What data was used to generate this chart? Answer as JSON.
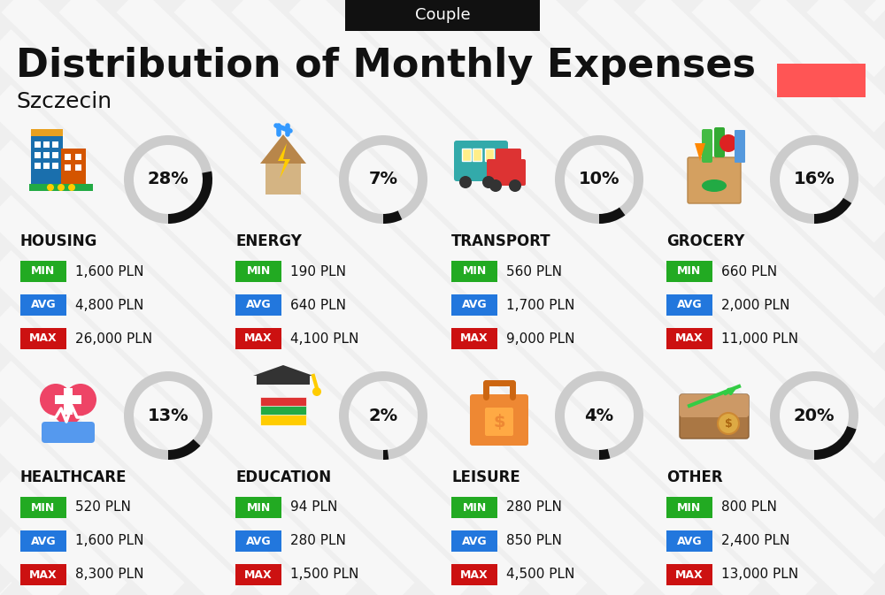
{
  "title": "Distribution of Monthly Expenses",
  "subtitle": "Couple",
  "location": "Szczecin",
  "bg_color": "#efefef",
  "header_bg": "#111111",
  "header_text_color": "#ffffff",
  "title_color": "#111111",
  "accent_color": "#ff5555",
  "categories": [
    {
      "name": "HOUSING",
      "pct": 28,
      "min": "1,600 PLN",
      "avg": "4,800 PLN",
      "max": "26,000 PLN",
      "row": 0,
      "col": 0
    },
    {
      "name": "ENERGY",
      "pct": 7,
      "min": "190 PLN",
      "avg": "640 PLN",
      "max": "4,100 PLN",
      "row": 0,
      "col": 1
    },
    {
      "name": "TRANSPORT",
      "pct": 10,
      "min": "560 PLN",
      "avg": "1,700 PLN",
      "max": "9,000 PLN",
      "row": 0,
      "col": 2
    },
    {
      "name": "GROCERY",
      "pct": 16,
      "min": "660 PLN",
      "avg": "2,000 PLN",
      "max": "11,000 PLN",
      "row": 0,
      "col": 3
    },
    {
      "name": "HEALTHCARE",
      "pct": 13,
      "min": "520 PLN",
      "avg": "1,600 PLN",
      "max": "8,300 PLN",
      "row": 1,
      "col": 0
    },
    {
      "name": "EDUCATION",
      "pct": 2,
      "min": "94 PLN",
      "avg": "280 PLN",
      "max": "1,500 PLN",
      "row": 1,
      "col": 1
    },
    {
      "name": "LEISURE",
      "pct": 4,
      "min": "280 PLN",
      "avg": "850 PLN",
      "max": "4,500 PLN",
      "row": 1,
      "col": 2
    },
    {
      "name": "OTHER",
      "pct": 20,
      "min": "800 PLN",
      "avg": "2,400 PLN",
      "max": "13,000 PLN",
      "row": 1,
      "col": 3
    }
  ],
  "min_color": "#22aa22",
  "avg_color": "#2277dd",
  "max_color": "#cc1111",
  "donut_filled_color": "#111111",
  "donut_empty_color": "#cccccc"
}
